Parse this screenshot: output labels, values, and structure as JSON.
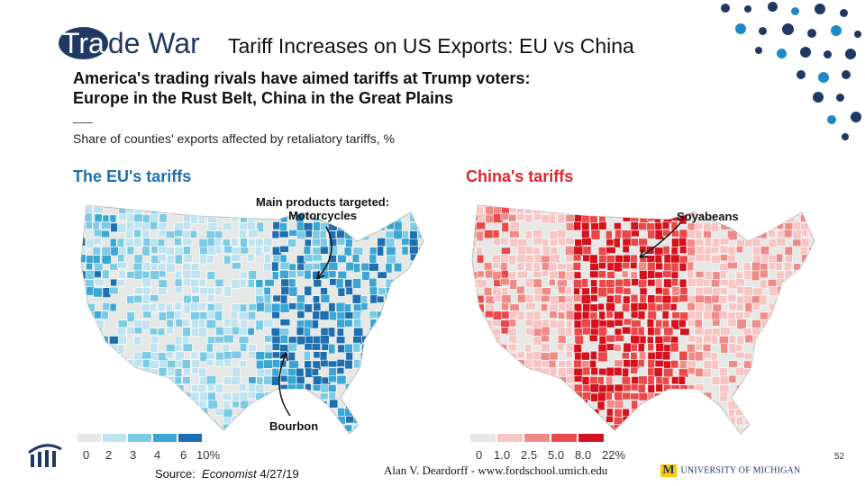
{
  "slide": {
    "title": "Trade War",
    "title_highlight": "Tra",
    "title_rest": "de War",
    "subtitle": "Tariff Increases on US Exports:  EU vs China"
  },
  "graphic": {
    "headline_line1": "America's trading rivals have aimed tariffs at Trump voters:",
    "headline_line2": "Europe in the Rust Belt, China in the Great Plains",
    "measure": "Share of counties' exports affected by retaliatory tariffs, %",
    "eu": {
      "title": "The EU's tariffs",
      "annotation_line1": "Main products targeted:",
      "annotation_line2": "Motorcycles",
      "annotation_bourbon": "Bourbon",
      "legend_labels": [
        "0",
        "2",
        "3",
        "4",
        "6",
        "10%"
      ],
      "legend_colors": [
        "#e6e8e6",
        "#bfe3ef",
        "#7ccbe4",
        "#3aa6d4",
        "#1e6fb0"
      ]
    },
    "china": {
      "title": "China's tariffs",
      "annotation": "Soyabeans",
      "legend_labels": [
        "0",
        "1.0",
        "2.5",
        "5.0",
        "8.0",
        "22%"
      ],
      "legend_colors": [
        "#e6e8e6",
        "#f6c6c4",
        "#ef8a86",
        "#e8494a",
        "#d3121d"
      ]
    }
  },
  "footer": {
    "source_prefix": "Source:  ",
    "source_pub": "Economist",
    "source_date": " 4/27/19",
    "author": "Alan V. Deardorff - www.fordschool.umich.edu",
    "university": "UNIVERSITY OF MICHIGAN",
    "page_number": "52"
  },
  "colors": {
    "navy": "#1f3864",
    "eu_blue": "#1e6fb0",
    "china_red": "#e3262b"
  }
}
